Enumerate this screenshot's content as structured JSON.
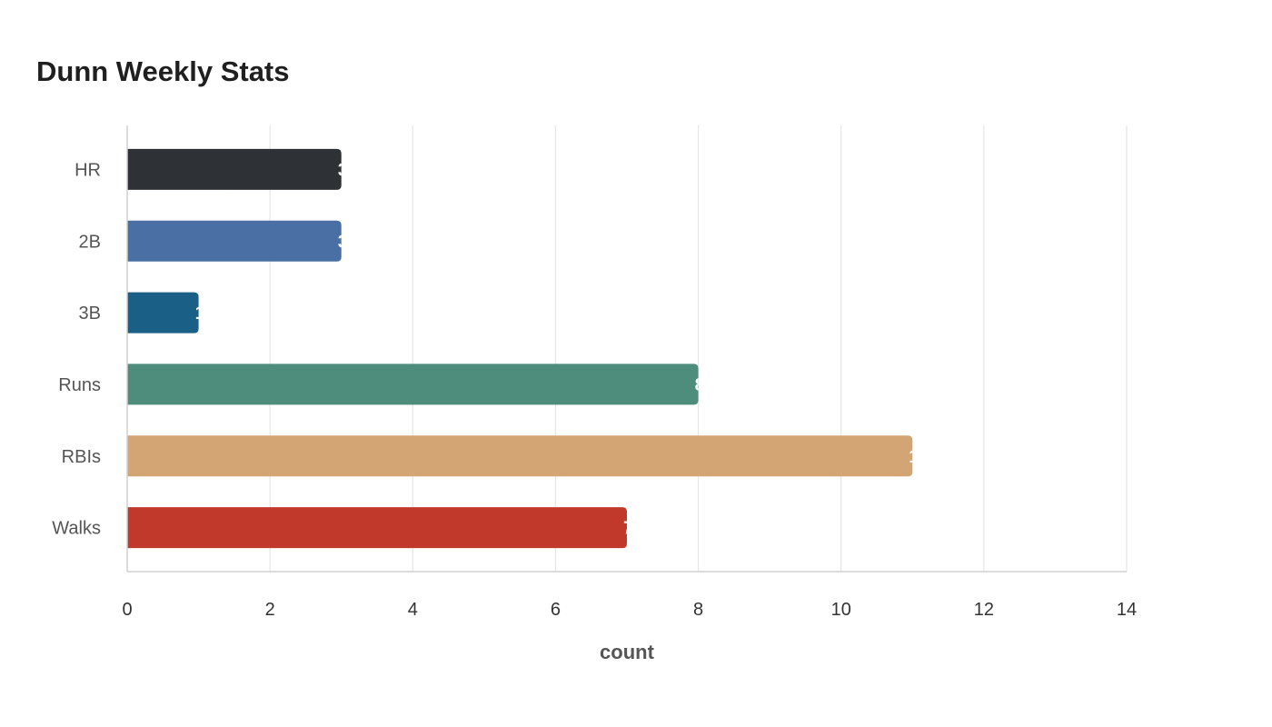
{
  "chart_data": {
    "type": "bar",
    "orientation": "horizontal",
    "title": "Dunn Weekly Stats",
    "xlabel": "count",
    "ylabel": "",
    "categories": [
      "HR",
      "2B",
      "3B",
      "Runs",
      "RBIs",
      "Walks"
    ],
    "values": [
      3,
      3,
      1,
      8,
      11,
      7
    ],
    "colors": [
      "#2e3236",
      "#4a6fa5",
      "#1a5f86",
      "#4e8d7c",
      "#d4a574",
      "#c0392b"
    ],
    "xlim": [
      0,
      14
    ],
    "xticks": [
      "0",
      "2",
      "4",
      "6",
      "8",
      "10",
      "12",
      "14"
    ],
    "grid": true,
    "legend": "none"
  }
}
